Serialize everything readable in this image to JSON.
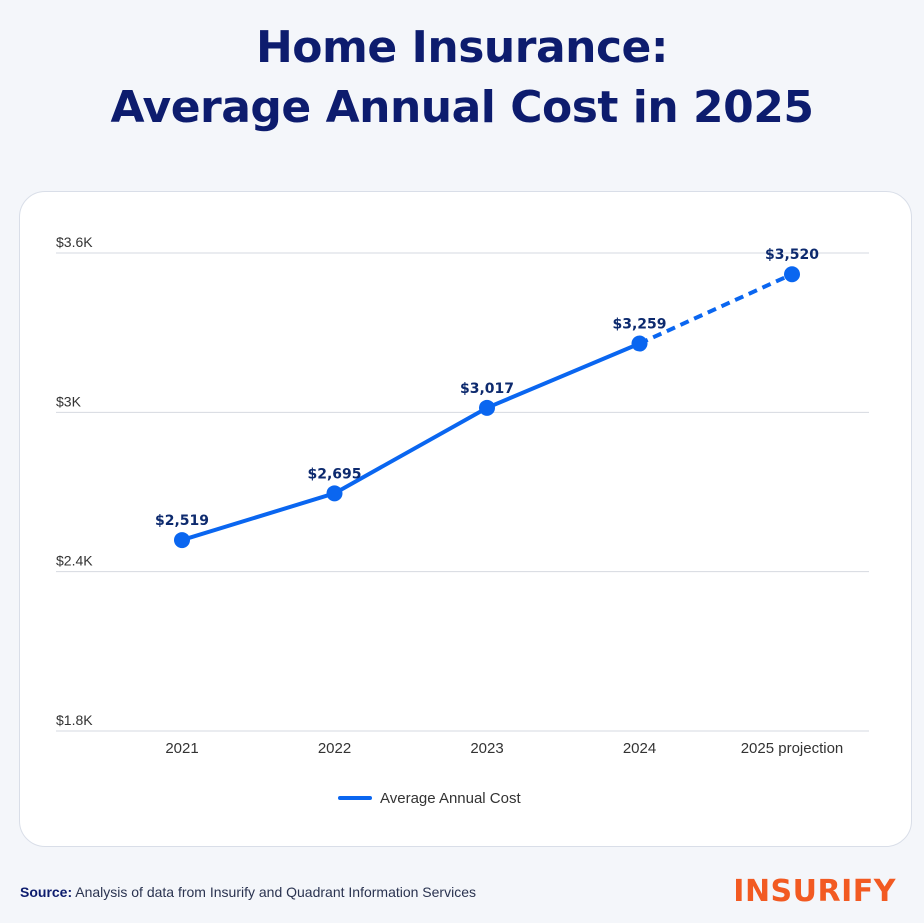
{
  "title_lines": [
    "Home Insurance:",
    "Average Annual Cost in 2025"
  ],
  "source": {
    "label": "Source:",
    "text": "Analysis of data from Insurify and Quadrant Information Services"
  },
  "logo_text": "INSURIFY",
  "colors": {
    "title": "#0d1c6e",
    "line": "#0a66f0",
    "data_label": "#0d2a6e",
    "grid": "#d6d9e0",
    "axis_text": "#333333",
    "logo": "#f25a22"
  },
  "chart_data": {
    "type": "line",
    "title": "Home Insurance: Average Annual Cost in 2025",
    "categories": [
      "2021",
      "2022",
      "2023",
      "2024",
      "2025 projection"
    ],
    "series": [
      {
        "name": "Average Annual Cost",
        "values": [
          2519,
          2695,
          3017,
          3259,
          3520
        ],
        "data_labels": [
          "$2,519",
          "$2,695",
          "$3,017",
          "$3,259",
          "$3,520"
        ],
        "projected_from_index": 3
      }
    ],
    "y_ticks": [
      1800,
      2400,
      3000,
      3600
    ],
    "y_tick_labels": [
      "$1.8K",
      "$2.4K",
      "$3K",
      "$3.6K"
    ],
    "ylim": [
      1800,
      3600
    ],
    "grid": true,
    "legend_position": "bottom-center",
    "xlabel": "",
    "ylabel": ""
  }
}
